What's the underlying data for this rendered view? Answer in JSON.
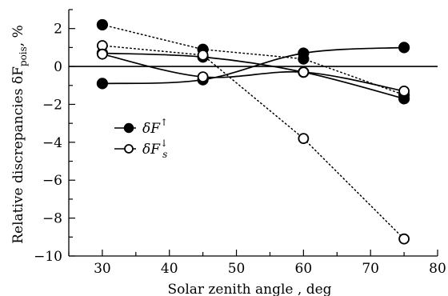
{
  "chart_data": {
    "type": "line",
    "xlabel": "Solar zenith angle , deg",
    "ylabel": {
      "prefix": "Relative discrepancies δF",
      "subscript": "pois",
      "suffix": ", %"
    },
    "xlim": [
      25,
      80
    ],
    "ylim": [
      -10,
      3
    ],
    "xticks": [
      30,
      40,
      50,
      60,
      70,
      80
    ],
    "yticks": [
      2,
      0,
      -2,
      -4,
      -6,
      -8,
      -10
    ],
    "ytick_labels": [
      "2",
      "0",
      "−2",
      "−4",
      "−6",
      "−8",
      "−10"
    ],
    "zero_line": true,
    "legend_position": "left-middle",
    "legend": [
      {
        "symbol": "δF",
        "sup": "↑",
        "sub": "",
        "marker": "filled-circle"
      },
      {
        "symbol": "δF",
        "sup": "↓",
        "sub": "s",
        "marker": "open-circle"
      }
    ],
    "x": [
      30,
      45,
      60,
      75
    ],
    "series": [
      {
        "marker": "filled",
        "line": "dotted",
        "values": [
          2.2,
          0.9,
          0.4,
          -1.5
        ]
      },
      {
        "marker": "filled",
        "line": "solid",
        "values": [
          0.7,
          0.5,
          -0.3,
          -1.7
        ]
      },
      {
        "marker": "filled",
        "line": "solid",
        "values": [
          -0.9,
          -0.7,
          0.7,
          1.0
        ]
      },
      {
        "marker": "open",
        "line": "dotted",
        "values": [
          1.1,
          0.6,
          -3.8,
          -9.1
        ]
      },
      {
        "marker": "open",
        "line": "solid",
        "values": [
          0.65,
          -0.55,
          -0.3,
          -1.3
        ]
      }
    ]
  }
}
